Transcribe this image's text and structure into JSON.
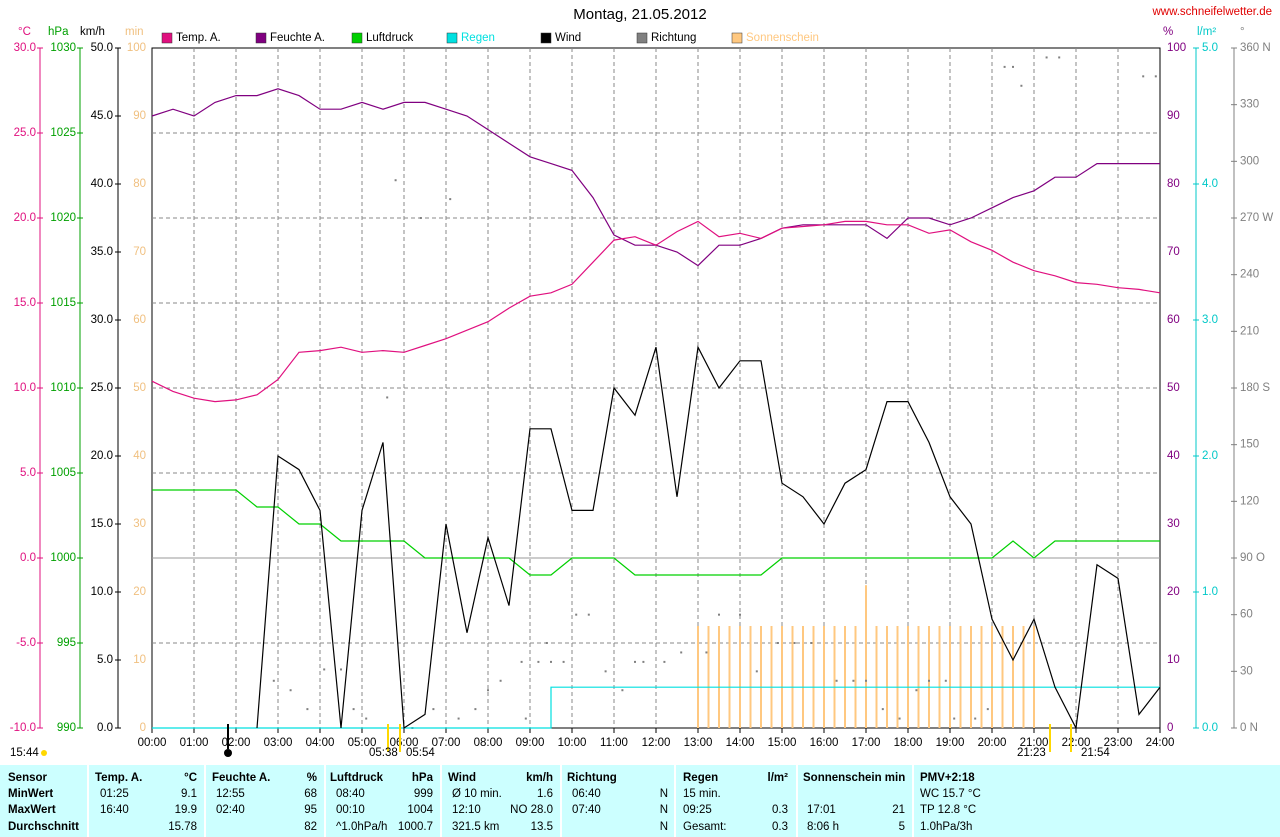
{
  "chart_data": {
    "type": "line",
    "title": "Montag, 21.05.2012",
    "source": "www.schneifelwetter.de",
    "grid": true,
    "xlim": [
      0,
      24
    ],
    "xticks": [
      {
        "value": 0,
        "label": "00:00"
      },
      {
        "value": 1,
        "label": "01:00"
      },
      {
        "value": 2,
        "label": "02:00"
      },
      {
        "value": 3,
        "label": "03:00"
      },
      {
        "value": 4,
        "label": "04:00"
      },
      {
        "value": 5,
        "label": "05:00"
      },
      {
        "value": 6,
        "label": "06:00"
      },
      {
        "value": 7,
        "label": "07:00"
      },
      {
        "value": 8,
        "label": "08:00"
      },
      {
        "value": 9,
        "label": "09:00"
      },
      {
        "value": 10,
        "label": "10:00"
      },
      {
        "value": 11,
        "label": "11:00"
      },
      {
        "value": 12,
        "label": "12:00"
      },
      {
        "value": 13,
        "label": "13:00"
      },
      {
        "value": 14,
        "label": "14:00"
      },
      {
        "value": 15,
        "label": "15:00"
      },
      {
        "value": 16,
        "label": "16:00"
      },
      {
        "value": 17,
        "label": "17:00"
      },
      {
        "value": 18,
        "label": "18:00"
      },
      {
        "value": 19,
        "label": "19:00"
      },
      {
        "value": 20,
        "label": "20:00"
      },
      {
        "value": 21,
        "label": "21:00"
      },
      {
        "value": 22,
        "label": "22:00"
      },
      {
        "value": 23,
        "label": "23:00"
      },
      {
        "value": 24,
        "label": "24:00"
      }
    ],
    "axes": [
      {
        "label": "°C",
        "color": "#e0107f",
        "side": "left",
        "lim": [
          -10,
          30
        ],
        "ticks": [
          {
            "value": -10,
            "label": "-10.0"
          },
          {
            "value": -5,
            "label": "-5.0"
          },
          {
            "value": 0,
            "label": "0.0"
          },
          {
            "value": 5,
            "label": "5.0"
          },
          {
            "value": 10,
            "label": "10.0"
          },
          {
            "value": 15,
            "label": "15.0"
          },
          {
            "value": 20,
            "label": "20.0"
          },
          {
            "value": 25,
            "label": "25.0"
          },
          {
            "value": 30,
            "label": "30.0"
          }
        ]
      },
      {
        "label": "hPa",
        "color": "#00a000",
        "side": "left",
        "lim": [
          990,
          1030
        ],
        "ticks": [
          990,
          995,
          1000,
          1005,
          1010,
          1015,
          1020,
          1025,
          1030
        ]
      },
      {
        "label": "km/h",
        "color": "#000000",
        "side": "left",
        "lim": [
          0,
          50
        ],
        "ticks": [
          {
            "value": 0,
            "label": "0.0"
          },
          {
            "value": 5,
            "label": "5.0"
          },
          {
            "value": 10,
            "label": "10.0"
          },
          {
            "value": 15,
            "label": "15.0"
          },
          {
            "value": 20,
            "label": "20.0"
          },
          {
            "value": 25,
            "label": "25.0"
          },
          {
            "value": 30,
            "label": "30.0"
          },
          {
            "value": 35,
            "label": "35.0"
          },
          {
            "value": 40,
            "label": "40.0"
          },
          {
            "value": 45,
            "label": "45.0"
          },
          {
            "value": 50,
            "label": "50.0"
          }
        ]
      },
      {
        "label": "min",
        "color": "#f0c080",
        "side": "left",
        "lim": [
          0,
          100
        ],
        "ticks": [
          0,
          10,
          20,
          30,
          40,
          50,
          60,
          70,
          80,
          90,
          100
        ]
      },
      {
        "label": "%",
        "color": "#800080",
        "side": "right",
        "lim": [
          0,
          100
        ],
        "ticks": [
          0,
          10,
          20,
          30,
          40,
          50,
          60,
          70,
          80,
          90,
          100
        ]
      },
      {
        "label": "l/m²",
        "color": "#00c8c8",
        "side": "right",
        "lim": [
          0,
          5
        ],
        "ticks": [
          {
            "value": 0,
            "label": "0.0"
          },
          {
            "value": 1,
            "label": "1.0"
          },
          {
            "value": 2,
            "label": "2.0"
          },
          {
            "value": 3,
            "label": "3.0"
          },
          {
            "value": 4,
            "label": "4.0"
          },
          {
            "value": 5,
            "label": "5.0"
          }
        ]
      },
      {
        "label": "°",
        "color": "#808080",
        "side": "right",
        "lim": [
          0,
          360
        ],
        "ticks": [
          {
            "value": 0,
            "label": "0 N"
          },
          30,
          60,
          {
            "value": 90,
            "label": "90 O"
          },
          120,
          150,
          {
            "value": 180,
            "label": "180 S"
          },
          210,
          240,
          {
            "value": 270,
            "label": "270 W"
          },
          300,
          330,
          {
            "value": 360,
            "label": "360 N"
          }
        ]
      }
    ],
    "x": [
      0,
      0.5,
      1,
      1.5,
      2,
      2.5,
      3,
      3.5,
      4,
      4.5,
      5,
      5.5,
      6,
      6.5,
      7,
      7.5,
      8,
      8.5,
      9,
      9.5,
      10,
      10.5,
      11,
      11.5,
      12,
      12.5,
      13,
      13.5,
      14,
      14.5,
      15,
      15.5,
      16,
      16.5,
      17,
      17.5,
      18,
      18.5,
      19,
      19.5,
      20,
      20.5,
      21,
      21.5,
      22,
      22.5,
      23,
      23.5,
      24
    ],
    "series": [
      {
        "name": "Temp. A.",
        "color": "#e0107f",
        "axis": 0,
        "values": [
          10.4,
          9.8,
          9.4,
          9.2,
          9.3,
          9.6,
          10.5,
          12.1,
          12.2,
          12.4,
          12.1,
          12.2,
          12.1,
          12.5,
          12.9,
          13.4,
          13.9,
          14.7,
          15.4,
          15.6,
          16.1,
          17.4,
          18.7,
          18.9,
          18.4,
          19.2,
          19.8,
          18.9,
          19.1,
          18.8,
          19.4,
          19.5,
          19.6,
          19.8,
          19.8,
          19.6,
          19.6,
          19.1,
          19.3,
          18.6,
          18.1,
          17.4,
          16.9,
          16.6,
          16.2,
          16.1,
          15.9,
          15.8,
          15.6
        ]
      },
      {
        "name": "Feuchte A.",
        "color": "#800080",
        "axis": 4,
        "values": [
          90,
          91,
          90,
          92,
          93,
          93,
          94,
          93,
          91,
          91,
          92,
          91,
          92,
          92,
          91,
          90,
          88,
          86,
          84,
          83,
          82,
          78,
          72.5,
          71,
          71,
          70,
          68,
          71,
          71,
          72,
          73.5,
          74,
          74,
          74,
          74,
          72,
          75,
          75,
          74,
          75,
          76.5,
          78,
          79,
          81,
          81,
          83,
          83,
          83,
          83
        ]
      },
      {
        "name": "Luftdruck",
        "color": "#00d000",
        "axis": 1,
        "values": [
          1004,
          1004,
          1004,
          1004,
          1004,
          1003,
          1003,
          1002,
          1002,
          1001,
          1001,
          1001,
          1001,
          1000,
          1000,
          1000,
          1000,
          1000,
          999,
          999,
          1000,
          1000,
          1000,
          999,
          999,
          999,
          999,
          999,
          999,
          999,
          1000,
          1000,
          1000,
          1000,
          1000,
          1000,
          1000,
          1000,
          1000,
          1000,
          1000,
          1001,
          1000,
          1001,
          1001,
          1001,
          1001,
          1001,
          1001
        ]
      },
      {
        "name": "Regen",
        "color": "#00e0e0",
        "axis": 5,
        "step": true,
        "values": [
          0,
          0,
          0,
          0,
          0,
          0,
          0,
          0,
          0,
          0,
          0,
          0,
          0,
          0,
          0,
          0,
          0,
          0,
          0,
          0.3,
          0.3,
          0.3,
          0.3,
          0.3,
          0.3,
          0.3,
          0.3,
          0.3,
          0.3,
          0.3,
          0.3,
          0.3,
          0.3,
          0.3,
          0.3,
          0.3,
          0.3,
          0.3,
          0.3,
          0.3,
          0.3,
          0.3,
          0.3,
          0.3,
          0.3,
          0.3,
          0.3,
          0.3,
          0.3
        ]
      },
      {
        "name": "Wind",
        "color": "#000000",
        "axis": 2,
        "values": [
          null,
          null,
          null,
          null,
          null,
          0,
          20,
          19,
          16,
          0,
          16,
          21,
          0,
          1,
          15,
          7,
          14,
          9,
          22,
          22,
          16,
          16,
          25,
          23,
          28,
          17,
          28,
          25,
          27,
          27,
          18,
          17,
          15,
          18,
          19,
          24,
          24,
          21,
          17,
          15,
          8,
          5,
          8,
          3,
          0,
          12,
          11,
          1,
          3
        ]
      },
      {
        "name": "Richtung",
        "color": "#808080",
        "axis": 6,
        "type": "scatter",
        "x": [
          2.9,
          3.3,
          3.7,
          4.1,
          4.5,
          4.8,
          5.1,
          5.6,
          5.8,
          6.2,
          6.4,
          6.7,
          7.1,
          7.3,
          7.7,
          8.0,
          8.3,
          8.8,
          8.9,
          9.2,
          9.4,
          9.5,
          9.8,
          10.1,
          10.4,
          10.8,
          11.2,
          11.5,
          11.7,
          12.2,
          12.6,
          13.2,
          13.5,
          14.0,
          14.4,
          14.9,
          15.3,
          15.7,
          16.3,
          16.7,
          17.0,
          17.4,
          17.8,
          18.2,
          18.5,
          18.9,
          19.1,
          19.6,
          19.9,
          20.3,
          20.5,
          20.7,
          21.3,
          21.6,
          23.6,
          23.9
        ],
        "values": [
          25,
          20,
          10,
          31,
          31,
          10,
          5,
          175,
          290,
          0,
          270,
          10,
          280,
          5,
          10,
          20,
          25,
          35,
          5,
          35,
          45,
          35,
          35,
          60,
          60,
          30,
          20,
          35,
          35,
          35,
          40,
          40,
          60,
          60,
          30,
          45,
          45,
          45,
          25,
          25,
          25,
          10,
          5,
          20,
          25,
          25,
          5,
          5,
          10,
          350,
          350,
          340,
          355,
          355,
          345,
          345
        ]
      },
      {
        "name": "Sonnenschein",
        "color": "#ffc880",
        "axis": 3,
        "type": "bar",
        "x": [
          13,
          13.25,
          13.5,
          13.75,
          14,
          14.25,
          14.5,
          14.75,
          15,
          15.25,
          15.5,
          15.75,
          16,
          16.25,
          16.5,
          16.75,
          17,
          17.25,
          17.5,
          17.75,
          18,
          18.25,
          18.5,
          18.75,
          19,
          19.25,
          19.5,
          19.75,
          20,
          20.25,
          20.5,
          20.75,
          21
        ],
        "values": [
          15,
          15,
          15,
          15,
          15,
          15,
          15,
          15,
          15,
          15,
          15,
          15,
          15,
          15,
          15,
          15,
          21,
          15,
          15,
          15,
          15,
          15,
          15,
          15,
          15,
          15,
          15,
          15,
          15,
          15,
          15,
          15,
          15
        ]
      }
    ],
    "annotations": [
      "15:44",
      "05:38",
      "05:54",
      "21:23",
      "21:54"
    ]
  },
  "table": {
    "header": {
      "sensor": "Sensor",
      "groups": [
        {
          "label": "Temp. A.",
          "unit": "°C"
        },
        {
          "label": "Feuchte A.",
          "unit": "%"
        },
        {
          "label": "Luftdruck",
          "unit": "hPa"
        },
        {
          "label": "Wind",
          "unit": "km/h"
        },
        {
          "label": "Richtung"
        },
        {
          "label": "Regen",
          "unit": "l/m²"
        },
        {
          "label": "Sonnenschein min"
        }
      ],
      "pmv": "PMV+2:18"
    },
    "rows": [
      {
        "label": "MinWert",
        "cells": [
          "01:25",
          "9.1",
          "12:55",
          "68",
          "08:40",
          "999",
          "Ø 10 min.",
          "1.6",
          "06:40",
          "N",
          "15 min.",
          null,
          null,
          null,
          "WC 15.7 °C"
        ]
      },
      {
        "label": "MaxWert",
        "cells": [
          "16:40",
          "19.9",
          "02:40",
          "95",
          "00:10",
          "1004",
          "12:10",
          "NO 28.0",
          "07:40",
          "N",
          "09:25",
          "0.3",
          "17:01",
          "21",
          "TP 12.8 °C"
        ]
      },
      {
        "label": "Durchschnitt",
        "cells": [
          null,
          "15.78",
          null,
          "82",
          "^1.0hPa/h",
          "1000.7",
          "321.5 km",
          "13.5",
          null,
          "N",
          "Gesamt:",
          "0.3",
          "8:06 h",
          "5",
          "1.0hPa/3h"
        ]
      }
    ]
  }
}
